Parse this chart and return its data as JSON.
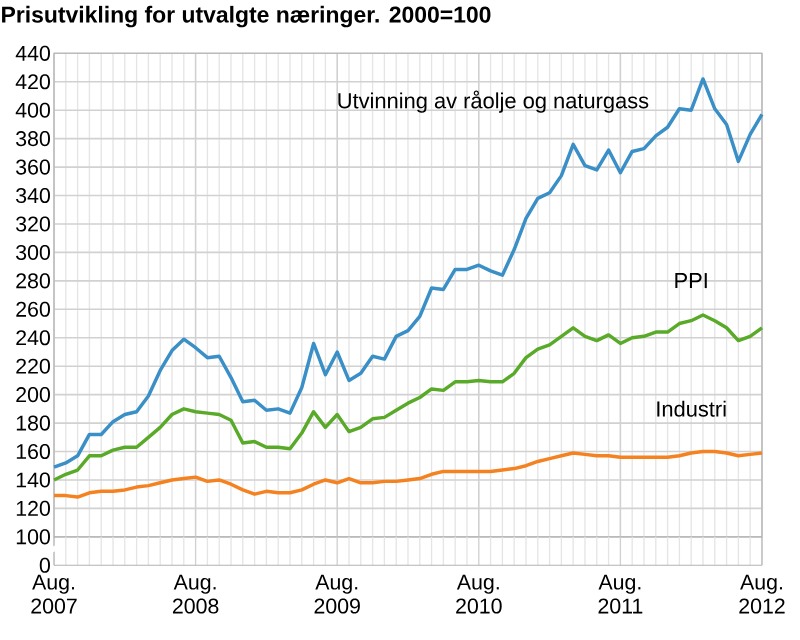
{
  "chart_data": {
    "type": "line",
    "title": "Prisutvikling for utvalgte næringer. 2000=100",
    "x": [
      "2007-08",
      "2007-09",
      "2007-10",
      "2007-11",
      "2007-12",
      "2008-01",
      "2008-02",
      "2008-03",
      "2008-04",
      "2008-05",
      "2008-06",
      "2008-07",
      "2008-08",
      "2008-09",
      "2008-10",
      "2008-11",
      "2008-12",
      "2009-01",
      "2009-02",
      "2009-03",
      "2009-04",
      "2009-05",
      "2009-06",
      "2009-07",
      "2009-08",
      "2009-09",
      "2009-10",
      "2009-11",
      "2009-12",
      "2010-01",
      "2010-02",
      "2010-03",
      "2010-04",
      "2010-05",
      "2010-06",
      "2010-07",
      "2010-08",
      "2010-09",
      "2010-10",
      "2010-11",
      "2010-12",
      "2011-01",
      "2011-02",
      "2011-03",
      "2011-04",
      "2011-05",
      "2011-06",
      "2011-07",
      "2011-08",
      "2011-09",
      "2011-10",
      "2011-11",
      "2011-12",
      "2012-01",
      "2012-02",
      "2012-03",
      "2012-04",
      "2012-05",
      "2012-06",
      "2012-07",
      "2012-08"
    ],
    "series": [
      {
        "name": "Utvinning av råolje og naturgass",
        "color": "#3a8fc7",
        "values": [
          149,
          152,
          157,
          172,
          172,
          181,
          186,
          188,
          199,
          217,
          231,
          239,
          233,
          226,
          227,
          212,
          195,
          196,
          189,
          190,
          187,
          205,
          236,
          214,
          230,
          210,
          215,
          227,
          225,
          241,
          245,
          255,
          275,
          274,
          288,
          288,
          291,
          287,
          284,
          302,
          324,
          338,
          342,
          354,
          376,
          361,
          358,
          372,
          356,
          371,
          373,
          382,
          388,
          401,
          400,
          422,
          401,
          390,
          364,
          383,
          397
        ]
      },
      {
        "name": "PPI",
        "color": "#5aaa2a",
        "values": [
          140,
          144,
          147,
          157,
          157,
          161,
          163,
          163,
          170,
          177,
          186,
          190,
          188,
          187,
          186,
          182,
          166,
          167,
          163,
          163,
          162,
          173,
          188,
          177,
          186,
          174,
          177,
          183,
          184,
          189,
          194,
          198,
          204,
          203,
          209,
          209,
          210,
          209,
          209,
          215,
          226,
          232,
          235,
          241,
          247,
          241,
          238,
          242,
          236,
          240,
          241,
          244,
          244,
          250,
          252,
          256,
          252,
          247,
          238,
          241,
          247
        ]
      },
      {
        "name": "Industri",
        "color": "#f58220",
        "values": [
          129,
          129,
          128,
          131,
          132,
          132,
          133,
          135,
          136,
          138,
          140,
          141,
          142,
          139,
          140,
          137,
          133,
          130,
          132,
          131,
          131,
          133,
          137,
          140,
          138,
          141,
          138,
          138,
          139,
          139,
          140,
          141,
          144,
          146,
          146,
          146,
          146,
          146,
          147,
          148,
          150,
          153,
          155,
          157,
          159,
          158,
          157,
          157,
          156,
          156,
          156,
          156,
          156,
          157,
          159,
          160,
          160,
          159,
          157,
          158,
          159
        ]
      }
    ],
    "xlim": [
      "2007-08",
      "2012-08"
    ],
    "xticks": [
      {
        "value": "2007-08",
        "label": "Aug. 2007"
      },
      {
        "value": "2008-08",
        "label": "Aug. 2008"
      },
      {
        "value": "2009-08",
        "label": "Aug. 2009"
      },
      {
        "value": "2010-08",
        "label": "Aug. 2010"
      },
      {
        "value": "2011-08",
        "label": "Aug. 2011"
      },
      {
        "value": "2012-08",
        "label": "Aug. 2012"
      }
    ],
    "ylim": [
      100,
      440
    ],
    "yticks": [
      100,
      120,
      140,
      160,
      180,
      200,
      220,
      240,
      260,
      280,
      300,
      320,
      340,
      360,
      380,
      400,
      420,
      440
    ],
    "annotations": [
      "0"
    ],
    "grid": true
  }
}
